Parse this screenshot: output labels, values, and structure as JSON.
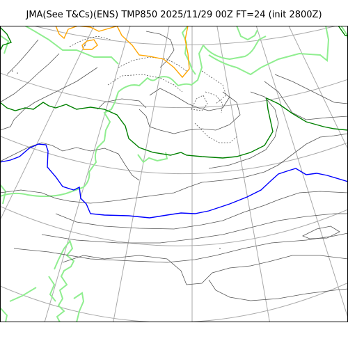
{
  "title": "JMA(See T&Cs)(ENS) TMP850 2025/11/29 00Z FT=24 (init 2800Z)",
  "colors": {
    "background": "#ffffff",
    "frame": "#000000",
    "graticule": "#a9a9a9",
    "coastline": "#90ee90",
    "isotherm": "#555555",
    "isotherm_cold": "#0000ff",
    "isotherm_zero": "#008000",
    "isotherm_warm": "#ffa500"
  },
  "layers": [
    "graticule",
    "coastline",
    "isotherms",
    "highlighted-isotherms"
  ]
}
